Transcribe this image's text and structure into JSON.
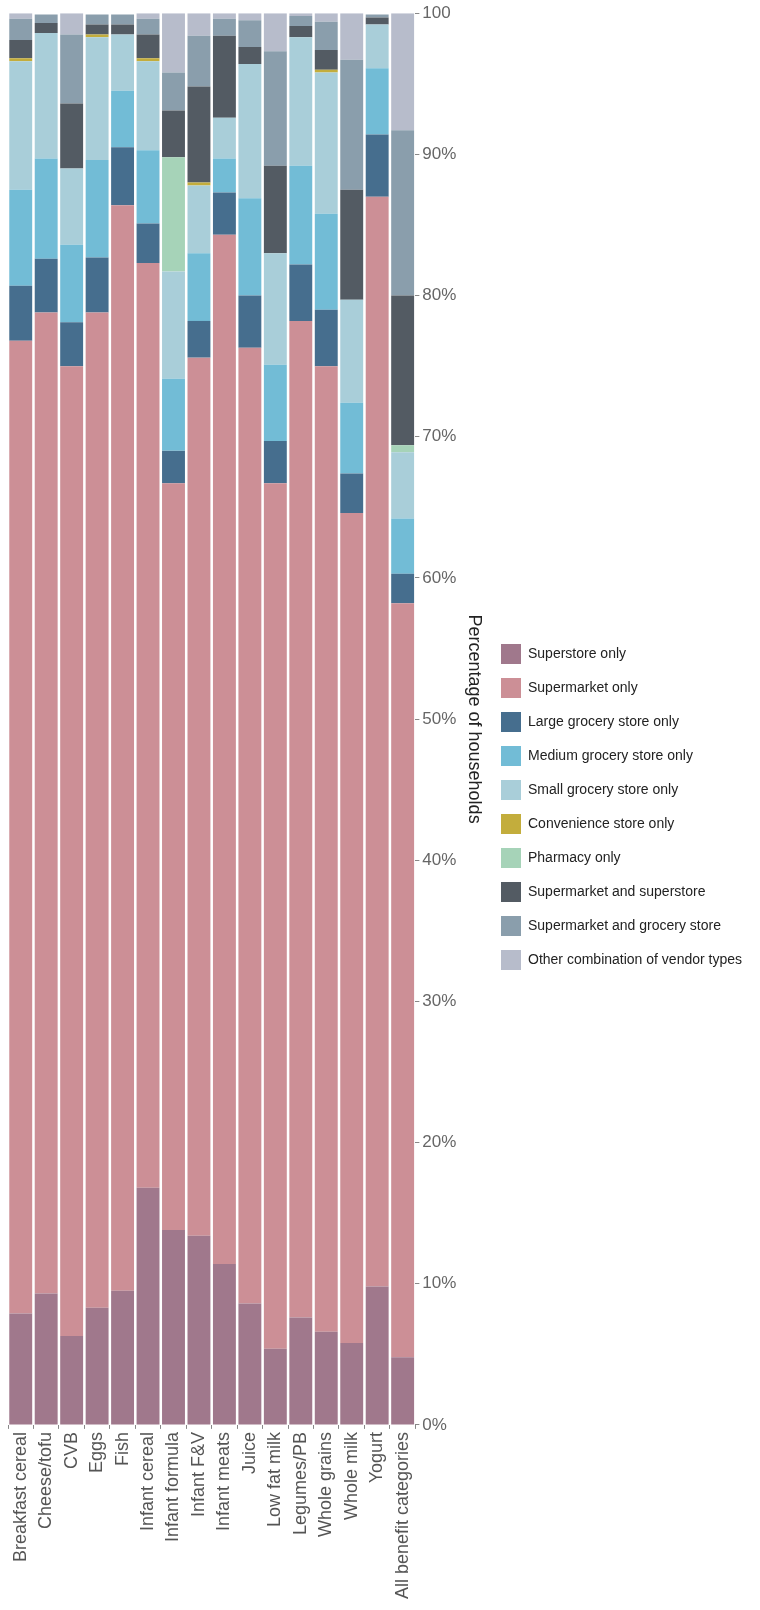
{
  "chart_data": {
    "type": "bar",
    "stacked": true,
    "categories": [
      "Breakfast cereal",
      "Cheese/tofu",
      "CVB",
      "Eggs",
      "Fish",
      "Infant cereal",
      "Infant formula",
      "Infant F&V",
      "Infant meats",
      "Juice",
      "Low fat milk",
      "Legumes/PB",
      "Whole grains",
      "Whole milk",
      "Yogurt",
      "All benefit categories"
    ],
    "series": [
      {
        "name": "Superstore only",
        "color": "#a0788c",
        "values": [
          7.9,
          9.3,
          6.3,
          8.3,
          9.5,
          16.8,
          13.8,
          13.4,
          11.4,
          8.6,
          5.4,
          7.6,
          6.6,
          5.8,
          9.8,
          4.8
        ]
      },
      {
        "name": "Supermarket only",
        "color": "#cc8f96",
        "values": [
          68.9,
          69.5,
          68.7,
          70.5,
          76.9,
          65.5,
          52.9,
          62.2,
          72.9,
          67.7,
          61.3,
          70.6,
          68.4,
          58.8,
          77.2,
          53.4
        ]
      },
      {
        "name": "Large grocery store only",
        "color": "#466e8e",
        "values": [
          3.9,
          3.8,
          3.1,
          3.9,
          4.1,
          2.8,
          2.3,
          2.6,
          3.0,
          3.7,
          3.0,
          4.0,
          4.0,
          2.8,
          4.4,
          2.1
        ]
      },
      {
        "name": "Medium grocery store only",
        "color": "#72bcd6",
        "values": [
          6.8,
          7.1,
          5.5,
          6.9,
          4.0,
          5.2,
          5.1,
          4.8,
          2.4,
          6.9,
          5.4,
          7.0,
          6.8,
          5.0,
          4.7,
          3.9
        ]
      },
      {
        "name": "Small grocery store only",
        "color": "#a9ced9",
        "values": [
          9.1,
          8.9,
          5.4,
          8.7,
          4.0,
          6.3,
          7.6,
          4.8,
          2.9,
          9.5,
          7.9,
          9.1,
          10.0,
          7.3,
          3.1,
          4.7
        ]
      },
      {
        "name": "Convenience store only",
        "color": "#c3ad3c",
        "values": [
          0.2,
          0,
          0,
          0.2,
          0,
          0.2,
          0,
          0.2,
          0,
          0,
          0,
          0,
          0.2,
          0,
          0,
          0
        ]
      },
      {
        "name": "Pharmacy only",
        "color": "#a6d3b8",
        "values": [
          0,
          0,
          0,
          0,
          0,
          0,
          8.1,
          0,
          0,
          0,
          0,
          0,
          0,
          0,
          0,
          0.5
        ]
      },
      {
        "name": "Supermarket and superstore",
        "color": "#535b63",
        "values": [
          1.3,
          0.7,
          4.6,
          0.7,
          0.7,
          1.7,
          3.3,
          6.8,
          5.8,
          1.2,
          6.2,
          0.8,
          1.4,
          7.8,
          0.5,
          10.6
        ]
      },
      {
        "name": "Supermarket and grocery store",
        "color": "#8a9eac",
        "values": [
          1.5,
          0.6,
          4.9,
          0.7,
          0.7,
          1.1,
          2.7,
          3.6,
          1.2,
          1.9,
          8.1,
          0.7,
          2.0,
          9.2,
          0.2,
          11.7
        ]
      },
      {
        "name": "Other combination of vendor types",
        "color": "#b7bccb",
        "values": [
          0.4,
          null,
          1.5,
          null,
          null,
          0.4,
          4.2,
          1.6,
          0.4,
          0.5,
          2.7,
          0.2,
          0.6,
          3.3,
          null,
          8.3
        ]
      }
    ],
    "ylim": [
      0,
      100
    ],
    "yticks": [
      {
        "value": 0,
        "label": "0%"
      },
      {
        "value": 10,
        "label": "10%"
      },
      {
        "value": 20,
        "label": "20%"
      },
      {
        "value": 30,
        "label": "30%"
      },
      {
        "value": 40,
        "label": "40%"
      },
      {
        "value": 50,
        "label": "50%"
      },
      {
        "value": 60,
        "label": "60%"
      },
      {
        "value": 70,
        "label": "70%"
      },
      {
        "value": 80,
        "label": "80%"
      },
      {
        "value": 90,
        "label": "90%"
      },
      {
        "value": 100,
        "label": "100"
      }
    ],
    "ylabel": "Percentage of households",
    "legend": "right"
  }
}
